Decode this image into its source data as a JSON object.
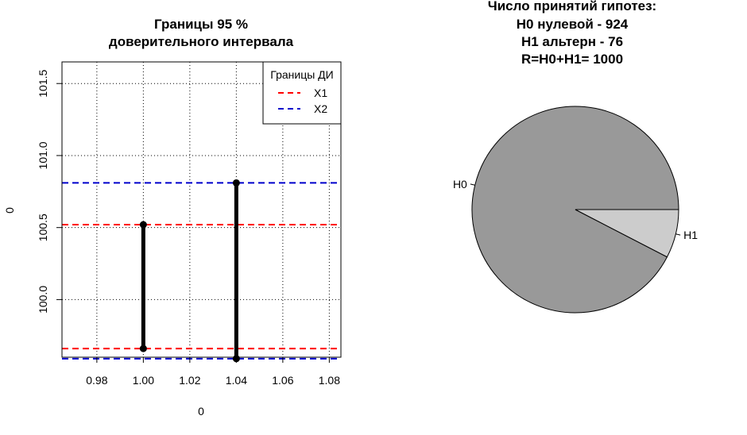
{
  "chart_data": [
    {
      "type": "line",
      "title_lines": [
        "Границы  95 %",
        "доверительного интервала"
      ],
      "xlabel": "0",
      "ylabel": "0",
      "xlim": [
        0.965,
        1.085
      ],
      "ylim": [
        99.6,
        101.65
      ],
      "x_ticks": [
        0.98,
        1.0,
        1.02,
        1.04,
        1.06,
        1.08
      ],
      "x_tick_labels": [
        "0.98",
        "1.00",
        "1.02",
        "1.04",
        "1.06",
        "1.08"
      ],
      "y_ticks": [
        100.0,
        100.5,
        101.0,
        101.5
      ],
      "y_tick_labels": [
        "100.0",
        "100.5",
        "101.0",
        "101.5"
      ],
      "grid": true,
      "hlines": [
        {
          "y": 100.52,
          "color": "#ff0000",
          "style": "dashed"
        },
        {
          "y": 99.66,
          "color": "#ff0000",
          "style": "dashed"
        },
        {
          "y": 100.81,
          "color": "#0000cc",
          "style": "dashed"
        },
        {
          "y": 99.59,
          "color": "#0000cc",
          "style": "dashed"
        }
      ],
      "segments": [
        {
          "x": 1.0,
          "y0": 99.66,
          "y1": 100.52
        },
        {
          "x": 1.04,
          "y0": 99.59,
          "y1": 100.81
        }
      ],
      "legend": {
        "title": "Границы ДИ",
        "position": "top-right",
        "entries": [
          {
            "label": "X1",
            "color": "#ff0000"
          },
          {
            "label": "X2",
            "color": "#0000cc"
          }
        ]
      }
    },
    {
      "type": "pie",
      "title_lines": [
        "Число принятий гипотез:",
        "H0 нулевой - 924",
        "H1 альтерн - 76",
        "R=H0+H1= 1000"
      ],
      "slices": [
        {
          "label": "H0",
          "value": 924,
          "color": "#999999"
        },
        {
          "label": "H1",
          "value": 76,
          "color": "#cccccc"
        }
      ]
    }
  ]
}
